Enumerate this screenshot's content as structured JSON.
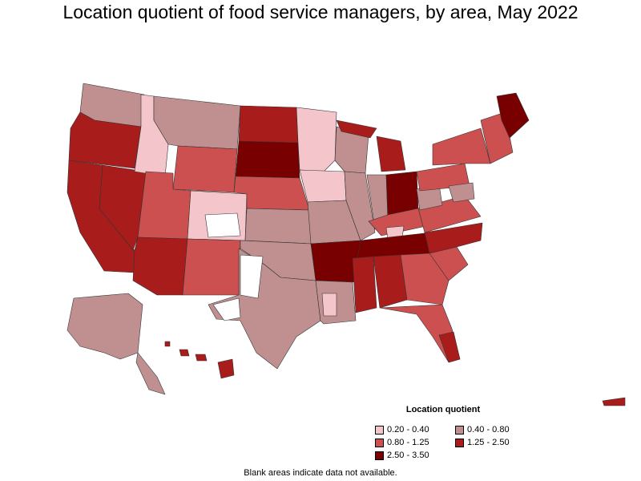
{
  "title": "Location quotient of food service managers, by area, May 2022",
  "legend": {
    "title": "Location quotient",
    "items": [
      {
        "label": "0.20 - 0.40",
        "color": "#f5c5cc"
      },
      {
        "label": "0.40 - 0.80",
        "color": "#c09090"
      },
      {
        "label": "0.80 - 1.25",
        "color": "#cc5050"
      },
      {
        "label": "1.25 - 2.50",
        "color": "#a81c1c"
      },
      {
        "label": "2.50 - 3.50",
        "color": "#780000"
      }
    ]
  },
  "footnote": "Blank areas indicate data not available.",
  "colors": {
    "outline": "#333333",
    "nodata": "#ffffff",
    "background": "#ffffff"
  }
}
